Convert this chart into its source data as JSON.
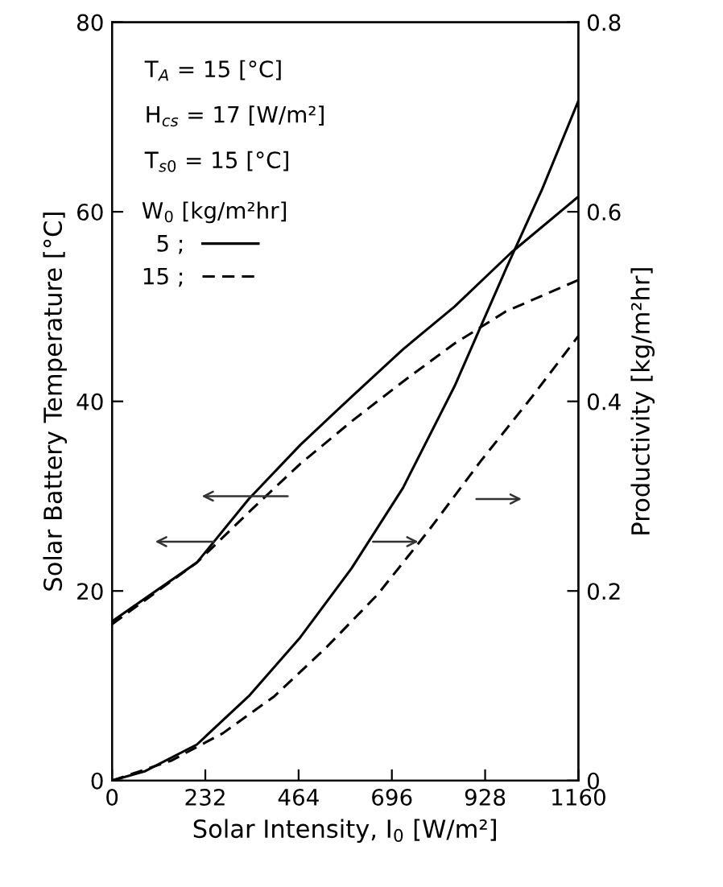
{
  "chart_data": {
    "type": "line",
    "xlabel": "Solar Intensity, I$_{0}$ [W/m²]",
    "ylabel": "Solar Battery Temperature [°C]",
    "y2label": "Productivity [kg/m²hr]",
    "legend_title": "W$_{0}$ [kg/m²hr]",
    "annotations": [
      "T$_{A}$ = 15 [°C]",
      "H$_{cs}$ = 17 [W/m²]",
      "T$_{s0}$ = 15 [°C]"
    ],
    "xlim": [
      0,
      1160
    ],
    "xticks": [
      0,
      232,
      464,
      696,
      928,
      1160
    ],
    "ylim": [
      0,
      80
    ],
    "yticks": [
      0,
      20,
      40,
      60,
      80
    ],
    "y2lim": [
      0,
      0.8
    ],
    "y2ticks": [
      0,
      0.2,
      0.4,
      0.6,
      0.8
    ],
    "grid": false,
    "legend": "top left",
    "marker": "none",
    "series": [
      {
        "name": "5 ;",
        "color": "#000000",
        "line_style": "solid",
        "x": [
          0,
          211,
          340,
          468,
          596,
          724,
          852,
          993,
          1160
        ],
        "values": [
          16.8,
          23.0,
          29.7,
          35.4,
          40.5,
          45.5,
          50.0,
          55.7,
          61.6
        ]
      },
      {
        "name": "15 ;",
        "color": "#000000",
        "line_style": "dashed",
        "x": [
          0,
          211,
          340,
          468,
          596,
          724,
          852,
          980,
          1160
        ],
        "values": [
          16.5,
          23.0,
          28.3,
          33.4,
          37.9,
          42.1,
          46.1,
          49.5,
          52.8
        ]
      },
      {
        "color": "#000000",
        "line_style": "solid",
        "axis": "y2",
        "x": [
          0,
          83,
          211,
          340,
          468,
          596,
          724,
          852,
          980,
          1070,
          1160
        ],
        "values": [
          0,
          0.01,
          0.038,
          0.089,
          0.151,
          0.224,
          0.309,
          0.416,
          0.54,
          0.624,
          0.717
        ]
      },
      {
        "color": "#000000",
        "line_style": "dashed",
        "axis": "y2",
        "x": [
          0,
          147,
          276,
          404,
          532,
          660,
          788,
          917,
          1045,
          1160
        ],
        "values": [
          0,
          0.021,
          0.05,
          0.089,
          0.14,
          0.196,
          0.264,
          0.337,
          0.405,
          0.469
        ]
      }
    ]
  }
}
